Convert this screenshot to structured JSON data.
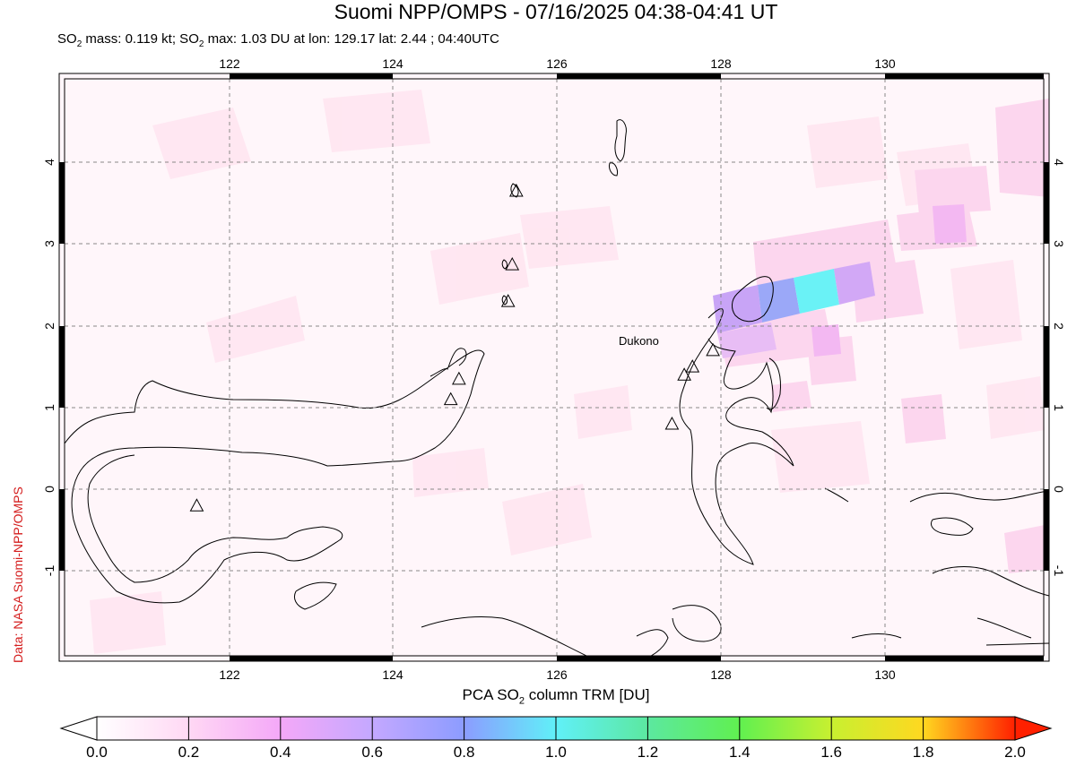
{
  "title": "Suomi NPP/OMPS - 07/16/2025 04:38-04:41 UT",
  "subtitle": {
    "mass_prefix": "SO",
    "mass_text": " mass: 0.119 kt; SO",
    "max_text": " max: 1.03 DU at lon: 129.17 lat: 2.44 ; 04:40UTC",
    "sub2": "2"
  },
  "credit": "Data: NASA Suomi-NPP/OMPS",
  "map": {
    "lon_ticks": [
      "122",
      "124",
      "126",
      "128",
      "130"
    ],
    "lat_ticks": [
      "4",
      "3",
      "2",
      "1",
      "0",
      "-1"
    ],
    "lon_range": [
      120.0,
      132.0
    ],
    "lat_range": [
      -2.0,
      5.0
    ],
    "grid": true,
    "volcano_label": "Dukono",
    "volcanoes": [
      {
        "lon": 121.6,
        "lat": -0.2
      },
      {
        "lon": 124.8,
        "lat": 1.35
      },
      {
        "lon": 124.7,
        "lat": 1.1
      },
      {
        "lon": 125.4,
        "lat": 2.3
      },
      {
        "lon": 125.45,
        "lat": 2.75
      },
      {
        "lon": 125.5,
        "lat": 3.65
      },
      {
        "lon": 127.4,
        "lat": 0.8
      },
      {
        "lon": 127.55,
        "lat": 1.4
      },
      {
        "lon": 127.65,
        "lat": 1.5
      },
      {
        "lon": 127.9,
        "lat": 1.7
      }
    ]
  },
  "colorbar": {
    "title_prefix": "PCA SO",
    "title_sub": "2",
    "title_suffix": " column TRM [DU]",
    "labels": [
      "0.0",
      "0.2",
      "0.4",
      "0.6",
      "0.8",
      "1.0",
      "1.2",
      "1.4",
      "1.6",
      "1.8",
      "2.0"
    ],
    "min": 0.0,
    "max": 2.0,
    "colors": [
      "#ffffff",
      "#ffd8f4",
      "#f4a8f8",
      "#c4a8ff",
      "#8c9cff",
      "#60f0f8",
      "#5ce8a0",
      "#60f050",
      "#c8f030",
      "#ffd820",
      "#ff7020",
      "#ff2000"
    ]
  }
}
